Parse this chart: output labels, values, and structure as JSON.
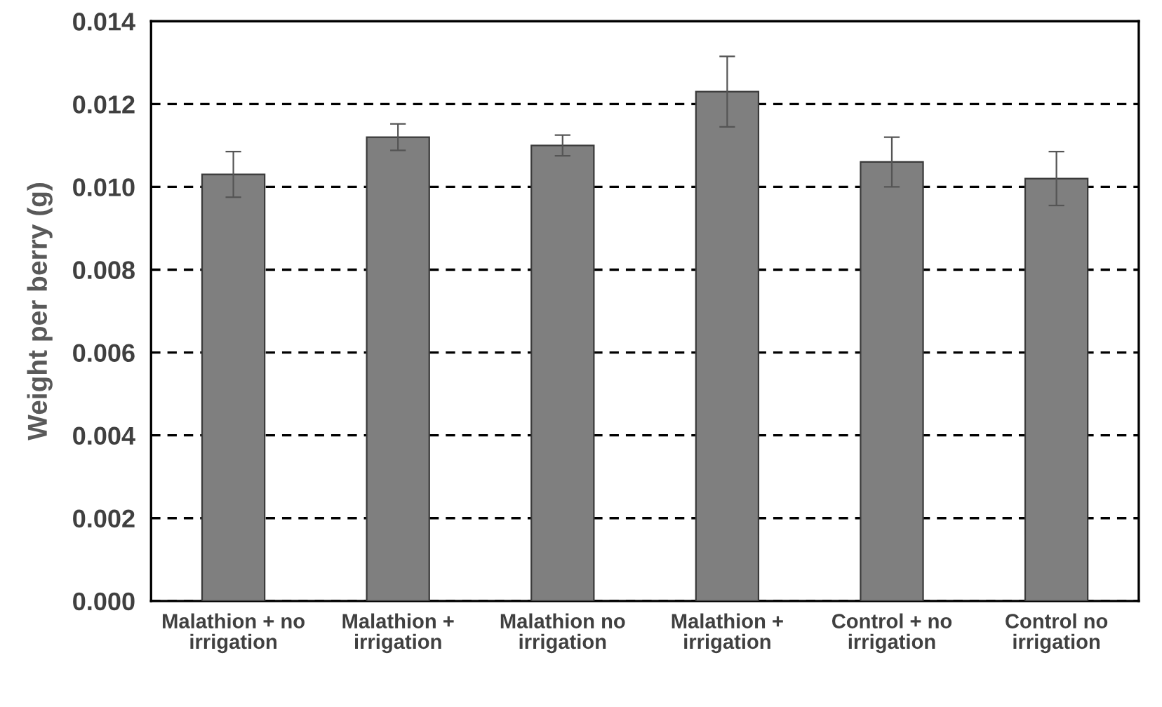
{
  "chart_data": {
    "type": "bar",
    "ylabel": "Weight per berry (g)",
    "categories": [
      "Malathion + no irrigation",
      "Malathion + irrigation",
      "Malathion no irrigation",
      "Malathion + irrigation",
      "Control + no irrigation",
      "Control no irrigation"
    ],
    "values": [
      0.0103,
      0.0112,
      0.011,
      0.0123,
      0.0106,
      0.0102
    ],
    "errors": [
      0.00055,
      0.00032,
      0.00025,
      0.00085,
      0.0006,
      0.00065
    ],
    "color": "#7f7f7f",
    "ylim": [
      0,
      0.014
    ],
    "yticks": [
      {
        "value": 0,
        "label": "0.000"
      },
      {
        "value": 0.002,
        "label": "0.002"
      },
      {
        "value": 0.004,
        "label": "0.004"
      },
      {
        "value": 0.006,
        "label": "0.006"
      },
      {
        "value": 0.008,
        "label": "0.008"
      },
      {
        "value": 0.01,
        "label": "0.010"
      },
      {
        "value": 0.012,
        "label": "0.012"
      },
      {
        "value": 0.014,
        "label": "0.014"
      }
    ],
    "grid": "y"
  }
}
